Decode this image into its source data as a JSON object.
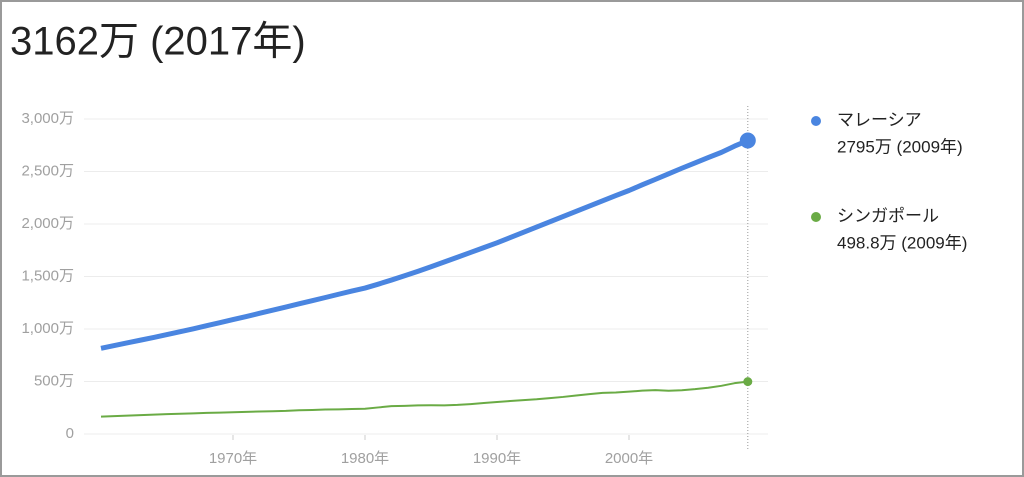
{
  "chart_data": {
    "type": "line",
    "title": "3162万 (2017年)",
    "x": [
      1960,
      1961,
      1962,
      1963,
      1964,
      1965,
      1966,
      1967,
      1968,
      1969,
      1970,
      1971,
      1972,
      1973,
      1974,
      1975,
      1976,
      1977,
      1978,
      1979,
      1980,
      1981,
      1982,
      1983,
      1984,
      1985,
      1986,
      1987,
      1988,
      1989,
      1990,
      1991,
      1992,
      1993,
      1994,
      1995,
      1996,
      1997,
      1998,
      1999,
      2000,
      2001,
      2002,
      2003,
      2004,
      2005,
      2006,
      2007,
      2008,
      2009
    ],
    "series": [
      {
        "name": "マレーシア",
        "color": "#4a85e0",
        "last_label": "2795万 (2009年)",
        "values": [
          816,
          842,
          868,
          894,
          920,
          947,
          974,
          1002,
          1031,
          1060,
          1090,
          1119,
          1149,
          1179,
          1209,
          1240,
          1270,
          1300,
          1331,
          1361,
          1390,
          1427,
          1466,
          1507,
          1549,
          1593,
          1638,
          1683,
          1729,
          1775,
          1821,
          1871,
          1921,
          1971,
          2021,
          2071,
          2121,
          2171,
          2221,
          2271,
          2319,
          2373,
          2425,
          2478,
          2531,
          2582,
          2633,
          2682,
          2742,
          2795
        ]
      },
      {
        "name": "シンガポール",
        "color": "#6aab45",
        "last_label": "498.8万 (2009年)",
        "values": [
          165,
          170,
          175,
          180,
          184,
          189,
          193,
          197,
          201,
          204,
          207,
          211,
          214,
          217,
          220,
          226,
          229,
          233,
          235,
          238,
          241,
          253,
          265,
          268,
          273,
          274,
          273,
          277,
          285,
          295,
          305,
          314,
          323,
          331,
          342,
          353,
          367,
          380,
          392,
          395,
          403,
          413,
          418,
          412,
          417,
          427,
          440,
          459,
          484,
          498.8
        ]
      }
    ],
    "xlim": [
      1960,
      2009
    ],
    "xticks": [
      {
        "value": 1970,
        "label": "1970年"
      },
      {
        "value": 1980,
        "label": "1980年"
      },
      {
        "value": 1990,
        "label": "1990年"
      },
      {
        "value": 2000,
        "label": "2000年"
      }
    ],
    "ylim": [
      0,
      3000
    ],
    "yticks": [
      0,
      {
        "value": 500,
        "label": "500万"
      },
      {
        "value": 1000,
        "label": "1,000万"
      },
      {
        "value": 1500,
        "label": "1,500万"
      },
      {
        "value": 2000,
        "label": "2,000万"
      },
      {
        "value": 2500,
        "label": "2,500万"
      },
      {
        "value": 3000,
        "label": "3,000万"
      }
    ],
    "grid": true
  }
}
